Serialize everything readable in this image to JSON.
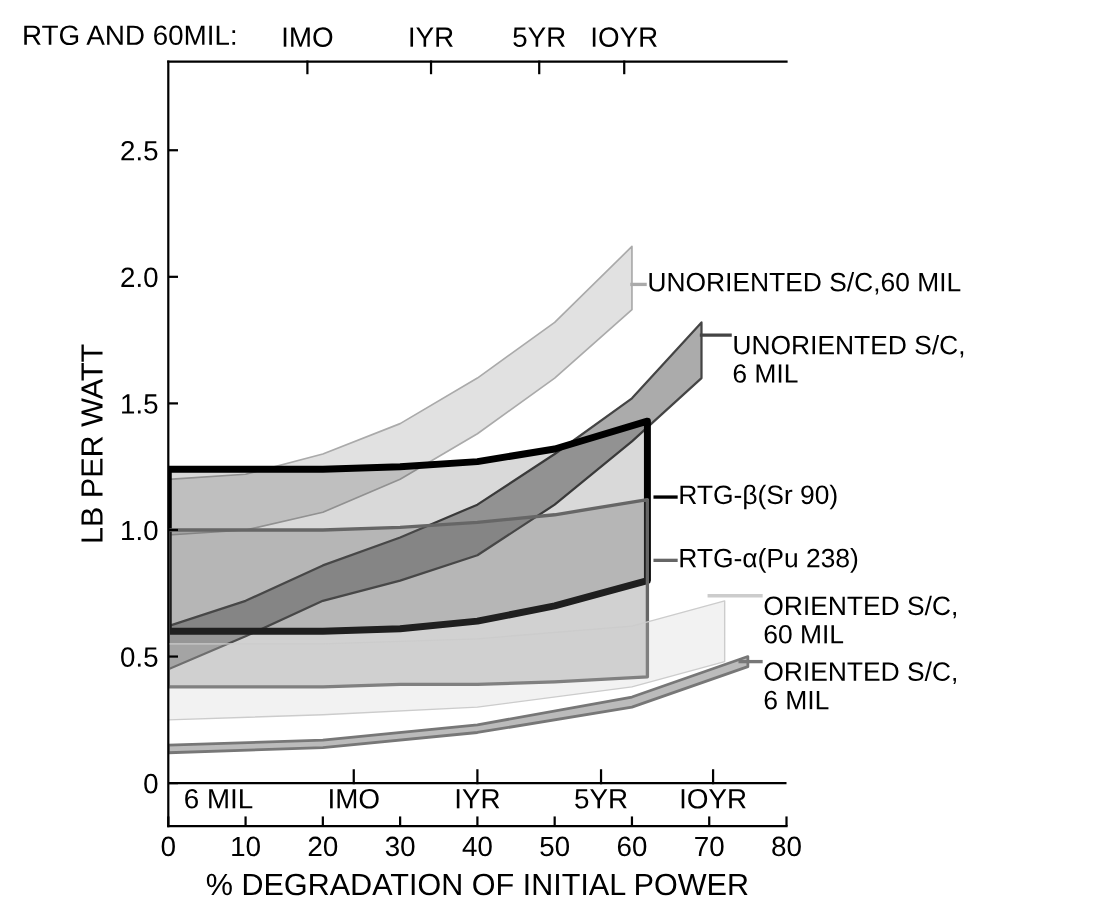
{
  "chart_data": {
    "type": "area",
    "xlabel": "% DEGRADATION OF INITIAL POWER",
    "ylabel": "LB PER WATT",
    "annotations": [
      "RTG AND 60MIL:",
      "IMO",
      "IYR",
      "5YR",
      "IOYR",
      "6 MIL",
      "IMO",
      "IYR",
      "5YR",
      "IOYR"
    ],
    "ref_lines": [
      {
        "axis": "y",
        "value": 0,
        "color": "#000000"
      }
    ],
    "xlim": [
      0,
      80
    ],
    "xticks": [
      0,
      10,
      20,
      30,
      40,
      50,
      60,
      70,
      80
    ],
    "ylim": [
      -0.17,
      2.85
    ],
    "yticks": [
      0,
      {
        "value": 0.5,
        "label": "0.5"
      },
      {
        "value": 1,
        "label": "1.0"
      },
      {
        "value": 1.5,
        "label": "1.5"
      },
      {
        "value": 2,
        "label": "2.0"
      },
      {
        "value": 2.5,
        "label": "2.5"
      }
    ],
    "grid": false,
    "legend": "right",
    "series": [
      {
        "name": "UNORIENTED S/C,60 MIL",
        "color": "#aaaaaa",
        "x": [
          0,
          10,
          20,
          30,
          40,
          50,
          60
        ],
        "values": [
          null,
          null,
          null,
          null,
          null,
          null,
          null
        ],
        "upper": [
          1.2,
          1.22,
          1.3,
          1.42,
          1.6,
          1.82,
          2.12
        ],
        "lower": [
          0.98,
          1.0,
          1.07,
          1.2,
          1.38,
          1.6,
          1.87
        ]
      },
      {
        "name": "UNORIENTED S/C, 6 MIL",
        "color": "#444444",
        "x": [
          0,
          10,
          20,
          30,
          40,
          50,
          60,
          69
        ],
        "values": [
          null,
          null,
          null,
          null,
          null,
          null,
          null,
          null
        ],
        "upper": [
          0.62,
          0.72,
          0.86,
          0.97,
          1.1,
          1.3,
          1.52,
          1.82
        ],
        "lower": [
          0.45,
          0.58,
          0.72,
          0.8,
          0.9,
          1.1,
          1.35,
          1.6
        ]
      },
      {
        "name": "RTG-β(Sr 90)",
        "color": "#000000",
        "x": [
          0,
          10,
          20,
          30,
          40,
          50,
          62
        ],
        "values": [
          null,
          null,
          null,
          null,
          null,
          null,
          null
        ],
        "upper": [
          1.24,
          1.24,
          1.24,
          1.25,
          1.27,
          1.32,
          1.43
        ],
        "lower": [
          0.6,
          0.6,
          0.6,
          0.61,
          0.64,
          0.7,
          0.8
        ]
      },
      {
        "name": "RTG-α(Pu 238)",
        "color": "#666666",
        "x": [
          0,
          10,
          20,
          30,
          40,
          50,
          62
        ],
        "values": [
          null,
          null,
          null,
          null,
          null,
          null,
          null
        ],
        "upper": [
          1.0,
          1.0,
          1.0,
          1.01,
          1.03,
          1.06,
          1.12
        ],
        "lower": [
          0.38,
          0.38,
          0.38,
          0.39,
          0.39,
          0.4,
          0.42
        ]
      },
      {
        "name": "ORIENTED S/C, 60 MIL",
        "color": "#cccccc",
        "x": [
          0,
          20,
          40,
          60,
          72
        ],
        "values": [
          null,
          null,
          null,
          null,
          null
        ],
        "upper": [
          0.55,
          0.55,
          0.57,
          0.62,
          0.72
        ],
        "lower": [
          0.25,
          0.27,
          0.3,
          0.38,
          0.48
        ]
      },
      {
        "name": "ORIENTED S/C, 6 MIL",
        "color": "#777777",
        "x": [
          0,
          20,
          40,
          60,
          75
        ],
        "values": [
          null,
          null,
          null,
          null,
          null
        ],
        "upper": [
          0.15,
          0.17,
          0.23,
          0.34,
          0.5
        ],
        "lower": [
          0.12,
          0.14,
          0.2,
          0.3,
          0.46
        ]
      }
    ]
  }
}
